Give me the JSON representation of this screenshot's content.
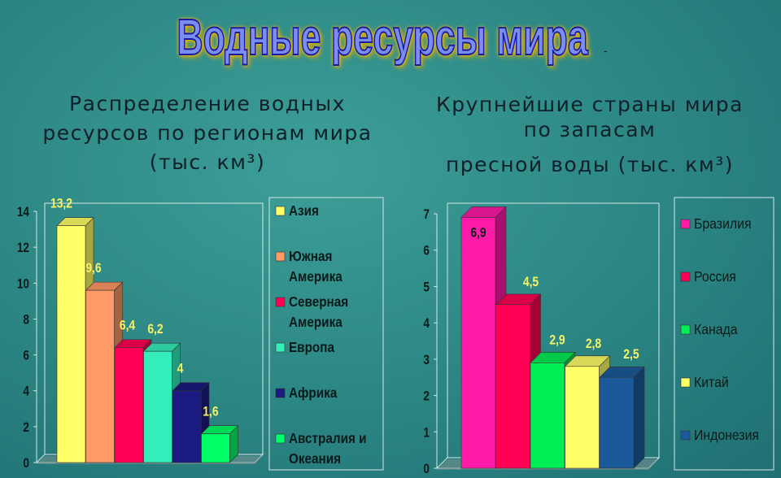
{
  "title": "Водные ресурсы мира",
  "dash": "-",
  "charts": [
    {
      "title_lines": [
        "Распределение водных",
        "ресурсов  по  регионам  мира",
        "(тыс. км³)"
      ]
    },
    {
      "title_lines": [
        "Крупнейшие страны мира",
        "по запасам",
        "пресной воды  (тыс. км³)"
      ]
    }
  ],
  "chart_data": [
    {
      "type": "bar",
      "title": "Распределение водных ресурсов по регионам мира (тыс. км³)",
      "categories": [
        "Азия",
        "Южная Америка",
        "Северная Америка",
        "Европа",
        "Африка",
        "Австралия и Океания"
      ],
      "values": [
        13.2,
        9.6,
        6.4,
        6.2,
        4,
        1.6
      ],
      "value_labels": [
        "13,2",
        "9,6",
        "6,4",
        "6,2",
        "4",
        "1,6"
      ],
      "colors": [
        "#ffff66",
        "#ff9966",
        "#ff0055",
        "#33eebb",
        "#1a1a80",
        "#00ff66"
      ],
      "ylim": [
        0,
        14
      ],
      "yticks": [
        "0",
        "2",
        "4",
        "6",
        "8",
        "10",
        "12",
        "14"
      ],
      "legend_position": "right",
      "legend": [
        [
          "Азия"
        ],
        [
          "Южная",
          "Америка"
        ],
        [
          "Северная",
          "Америка"
        ],
        [
          "Европа"
        ],
        [
          "Африка"
        ],
        [
          "Австралия и",
          "Океания"
        ]
      ],
      "grid": false
    },
    {
      "type": "bar",
      "title": "Крупнейшие страны мира по запасам пресной воды (тыс. км³)",
      "categories": [
        "Бразилия",
        "Россия",
        "Канада",
        "Китай",
        "Индонезия"
      ],
      "values": [
        6.9,
        4.5,
        2.9,
        2.8,
        2.5
      ],
      "value_labels": [
        "6,9",
        "4,5",
        "2,9",
        "2,8",
        "2,5"
      ],
      "colors": [
        "#ff1aa8",
        "#ff0055",
        "#00ee55",
        "#ffff66",
        "#1a5a9a"
      ],
      "ylim": [
        0,
        7
      ],
      "yticks": [
        "0",
        "1",
        "2",
        "3",
        "4",
        "5",
        "6",
        "7"
      ],
      "legend_position": "right",
      "legend": [
        [
          "Бразилия"
        ],
        [
          "Россия"
        ],
        [
          "Канада"
        ],
        [
          "Китай"
        ],
        [
          "Индонезия"
        ]
      ],
      "grid": false
    }
  ]
}
